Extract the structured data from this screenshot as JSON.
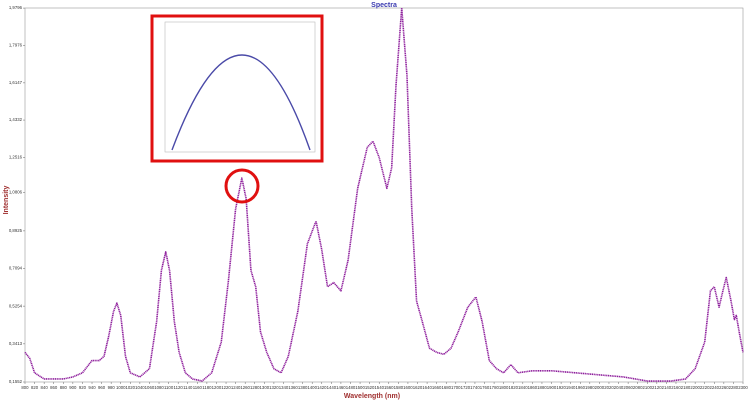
{
  "chart_data": {
    "type": "line",
    "title": "Spectra",
    "x_label": "Wavelength (nm)",
    "y_label": "Intensity",
    "x": [
      800,
      810,
      820,
      840,
      860,
      880,
      900,
      920,
      940,
      955,
      965,
      975,
      985,
      992,
      1000,
      1010,
      1020,
      1040,
      1060,
      1075,
      1085,
      1094,
      1102,
      1112,
      1122,
      1135,
      1150,
      1170,
      1190,
      1210,
      1225,
      1240,
      1253,
      1262,
      1272,
      1282,
      1292,
      1305,
      1320,
      1335,
      1350,
      1370,
      1390,
      1408,
      1420,
      1432,
      1445,
      1460,
      1475,
      1495,
      1515,
      1527,
      1540,
      1556,
      1566,
      1575,
      1587,
      1598,
      1608,
      1618,
      1630,
      1645,
      1660,
      1675,
      1690,
      1705,
      1725,
      1742,
      1755,
      1770,
      1785,
      1800,
      1815,
      1830,
      1860,
      1900,
      1950,
      2000,
      2050,
      2100,
      2150,
      2180,
      2200,
      2220,
      2232,
      2240,
      2250,
      2258,
      2265,
      2275,
      2282,
      2286,
      2292,
      2300
    ],
    "series": [
      {
        "name": "Spectrum",
        "color": "#8e1f9c",
        "values": [
          0.3,
          0.27,
          0.2,
          0.17,
          0.17,
          0.17,
          0.18,
          0.2,
          0.26,
          0.26,
          0.28,
          0.38,
          0.5,
          0.54,
          0.48,
          0.28,
          0.2,
          0.18,
          0.22,
          0.45,
          0.7,
          0.79,
          0.7,
          0.45,
          0.3,
          0.2,
          0.17,
          0.16,
          0.2,
          0.35,
          0.65,
          1.0,
          1.15,
          1.05,
          0.7,
          0.62,
          0.4,
          0.3,
          0.22,
          0.2,
          0.28,
          0.5,
          0.83,
          0.94,
          0.8,
          0.62,
          0.64,
          0.6,
          0.75,
          1.1,
          1.3,
          1.33,
          1.25,
          1.1,
          1.2,
          1.6,
          1.98,
          1.65,
          1.0,
          0.55,
          0.45,
          0.32,
          0.3,
          0.29,
          0.32,
          0.4,
          0.52,
          0.57,
          0.45,
          0.26,
          0.22,
          0.2,
          0.24,
          0.2,
          0.21,
          0.21,
          0.2,
          0.19,
          0.18,
          0.16,
          0.16,
          0.17,
          0.22,
          0.35,
          0.6,
          0.62,
          0.52,
          0.6,
          0.665,
          0.55,
          0.46,
          0.48,
          0.4,
          0.3
        ]
      }
    ],
    "xlim": [
      800,
      2300
    ],
    "xticks": [
      800,
      820,
      840,
      860,
      880,
      900,
      920,
      940,
      960,
      980,
      1000,
      1020,
      1040,
      1060,
      1080,
      1100,
      1120,
      1140,
      1160,
      1180,
      1200,
      1220,
      1240,
      1260,
      1280,
      1300,
      1320,
      1340,
      1360,
      1380,
      1400,
      1420,
      1440,
      1460,
      1480,
      1500,
      1520,
      1540,
      1560,
      1580,
      1600,
      1620,
      1640,
      1660,
      1680,
      1700,
      1720,
      1740,
      1760,
      1780,
      1800,
      1820,
      1840,
      1860,
      1880,
      1900,
      1920,
      1940,
      1960,
      1980,
      2000,
      2020,
      2040,
      2060,
      2080,
      2100,
      2120,
      2140,
      2160,
      2180,
      2200,
      2220,
      2240,
      2260,
      2280,
      2300
    ],
    "ylim": [
      0.1552,
      1.98
    ],
    "yticks": [
      {
        "value": 0.1552,
        "label": "0,1552"
      },
      {
        "value": 0.3413,
        "label": "0,3413"
      },
      {
        "value": 0.5254,
        "label": "0,5254"
      },
      {
        "value": 0.7094,
        "label": "0,7094"
      },
      {
        "value": 0.8925,
        "label": "0,8925"
      },
      {
        "value": 1.0806,
        "label": "1,0806"
      },
      {
        "value": 1.2516,
        "label": "1,2516"
      },
      {
        "value": 1.4332,
        "label": "1,4332"
      },
      {
        "value": 1.6147,
        "label": "1,6147"
      },
      {
        "value": 1.7976,
        "label": "1,7976"
      },
      {
        "value": 1.9796,
        "label": "1,9796"
      }
    ]
  }
}
